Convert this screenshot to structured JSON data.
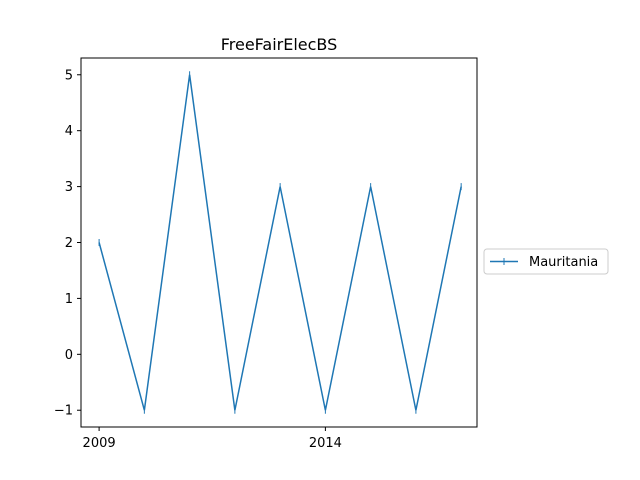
{
  "chart_data": {
    "type": "line",
    "title": "FreeFairElecBS",
    "xlabel": "",
    "ylabel": "",
    "x": [
      2009,
      2010,
      2011,
      2012,
      2013,
      2014,
      2015,
      2016,
      2017
    ],
    "xlim": [
      2008.6,
      2017.35
    ],
    "ylim": [
      -1.3,
      5.3
    ],
    "xticks": [
      2009,
      2014
    ],
    "xtick_labels": [
      "2009",
      "2014"
    ],
    "yticks": [
      -1,
      0,
      1,
      2,
      3,
      4,
      5
    ],
    "ytick_labels": [
      "−1",
      "0",
      "1",
      "2",
      "3",
      "4",
      "5"
    ],
    "grid": false,
    "legend_position": "right-center, outside plot",
    "series": [
      {
        "name": "Mauritania",
        "color": "#1f77b4",
        "marker": "vertical-line",
        "values": [
          2,
          -1,
          5,
          -1,
          3,
          -1,
          3,
          -1,
          3
        ]
      }
    ]
  }
}
